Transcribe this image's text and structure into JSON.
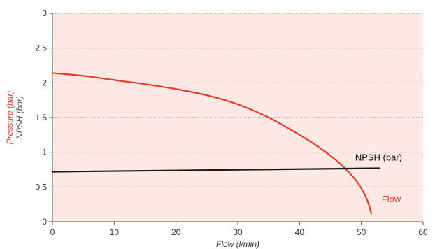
{
  "chart_data": {
    "type": "line",
    "xlabel": "Flow (l/min)",
    "ylabel_primary": "Pressure (bar)",
    "ylabel_secondary": "NPSH (bar)",
    "xlim": [
      0,
      60
    ],
    "ylim": [
      0,
      3
    ],
    "x_ticks": [
      0,
      10,
      20,
      30,
      40,
      50,
      60
    ],
    "x_tick_labels": [
      "0",
      "10",
      "20",
      "30",
      "40",
      "50",
      "60"
    ],
    "y_ticks": [
      0,
      0.5,
      1,
      1.5,
      2,
      2.5,
      3
    ],
    "y_tick_labels": [
      "0",
      "0,5",
      "1",
      "1,5",
      "2",
      "2,5",
      "3"
    ],
    "grid": "horizontal dashed",
    "series": [
      {
        "label": "Flow",
        "color": "#e8392b",
        "points": [
          [
            0,
            2.14
          ],
          [
            5,
            2.1
          ],
          [
            10,
            2.04
          ],
          [
            15,
            1.98
          ],
          [
            20,
            1.91
          ],
          [
            25,
            1.82
          ],
          [
            30,
            1.69
          ],
          [
            35,
            1.5
          ],
          [
            40,
            1.25
          ],
          [
            43,
            1.08
          ],
          [
            45,
            0.95
          ],
          [
            47,
            0.8
          ],
          [
            48.5,
            0.66
          ],
          [
            49.5,
            0.55
          ],
          [
            50.5,
            0.4
          ],
          [
            51.2,
            0.25
          ],
          [
            51.6,
            0.12
          ]
        ]
      },
      {
        "label": "NPSH (bar)",
        "color": "#1a1a1a",
        "points": [
          [
            0,
            0.72
          ],
          [
            53,
            0.77
          ]
        ]
      }
    ],
    "colors": {
      "plot_background": "#fde9e3",
      "grid": "#666666",
      "primary_axis_label": "#e8392b",
      "secondary_axis_label": "#555555"
    }
  }
}
